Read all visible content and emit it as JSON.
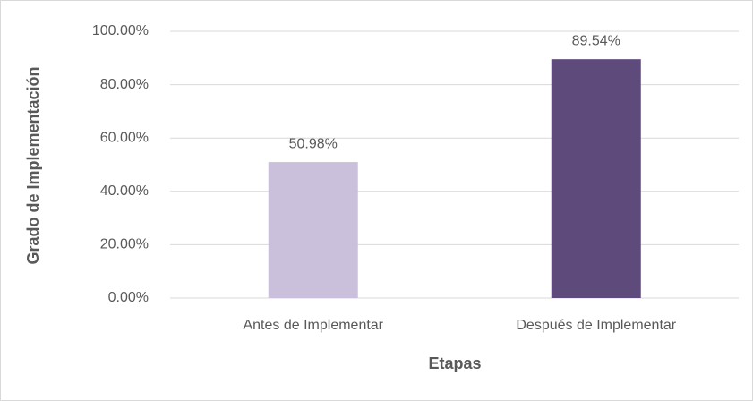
{
  "chart_data": {
    "type": "bar",
    "x_label": "Etapas",
    "y_label": "Grado de Implementación",
    "categories": [
      "Antes de Implementar",
      "Después de Implementar"
    ],
    "values": [
      50.98,
      89.54
    ],
    "value_labels": [
      "50.98%",
      "89.54%"
    ],
    "colors": [
      "#cbc0dc",
      "#5e4a7b"
    ],
    "ylim": [
      0,
      100
    ],
    "yticks": [
      {
        "value": 0,
        "label": "0.00%"
      },
      {
        "value": 20,
        "label": "20.00%"
      },
      {
        "value": 40,
        "label": "40.00%"
      },
      {
        "value": 60,
        "label": "60.00%"
      },
      {
        "value": 80,
        "label": "80.00%"
      },
      {
        "value": 100,
        "label": "100.00%"
      }
    ],
    "grid": true
  }
}
